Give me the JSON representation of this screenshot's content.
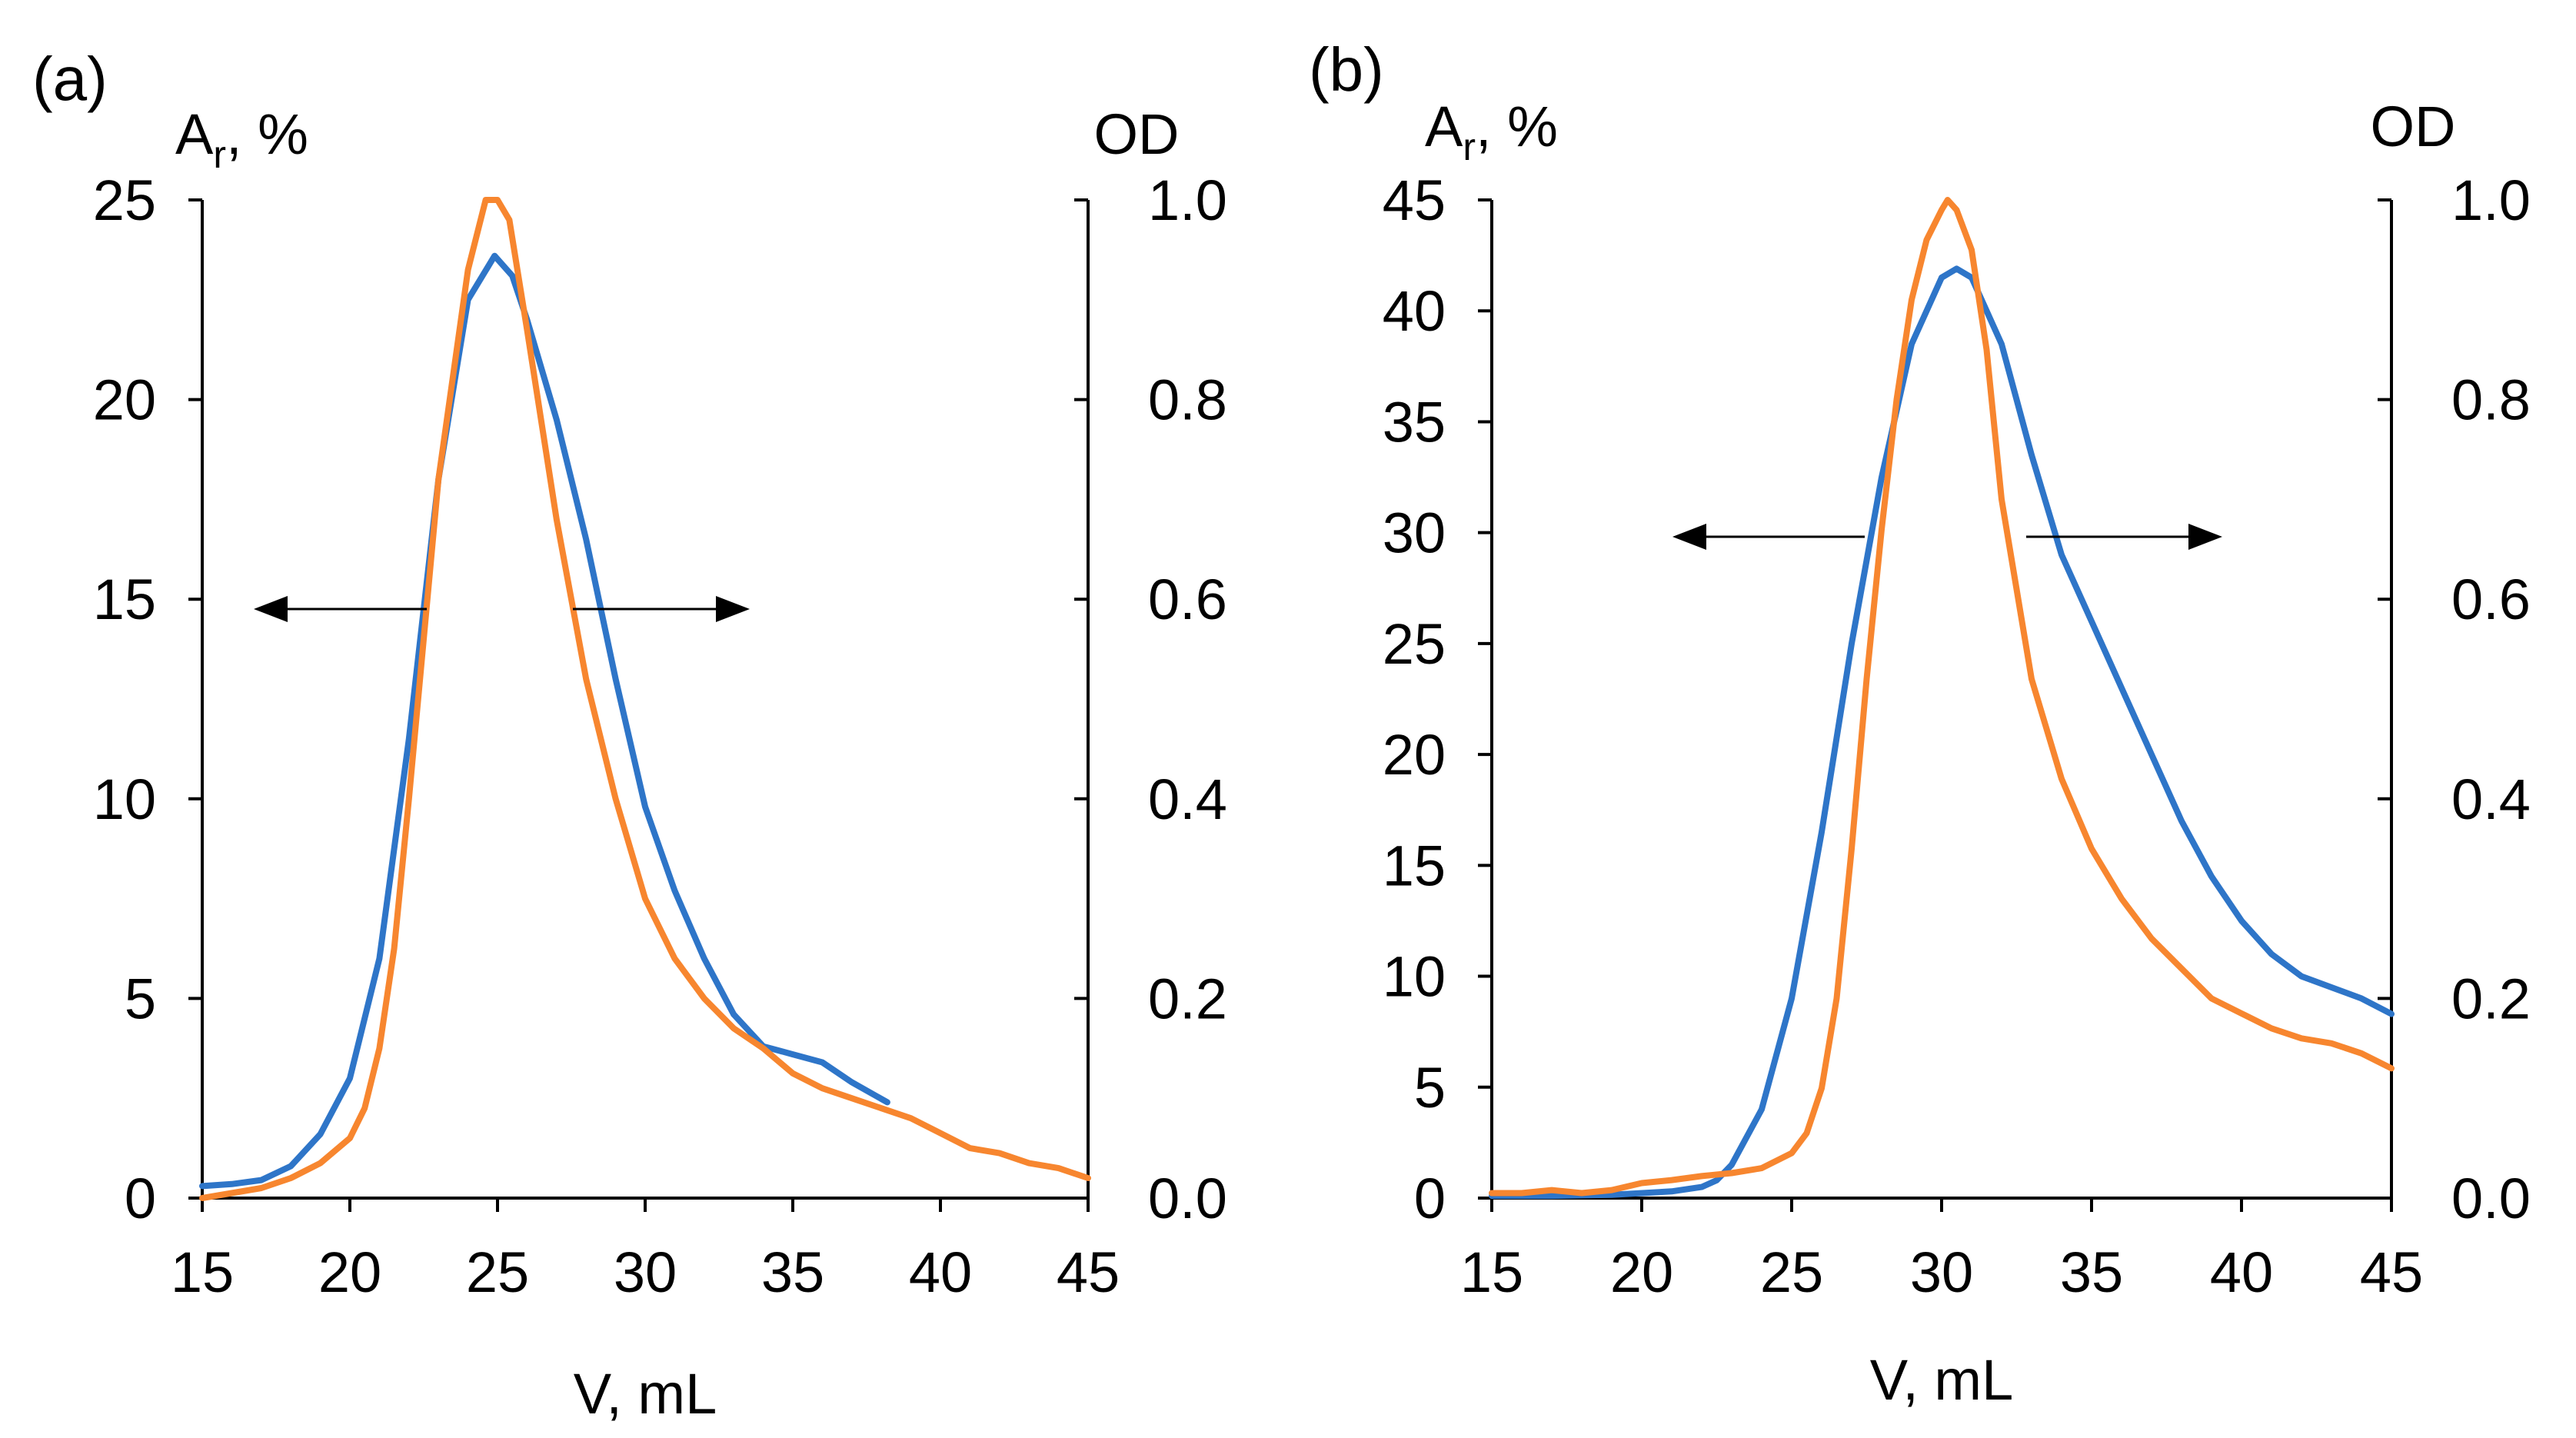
{
  "colors": {
    "blue": "#2e75c8",
    "orange": "#f7862f",
    "axis": "#000000"
  },
  "chart_data": [
    {
      "type": "line",
      "panel_label": "(a)",
      "xlabel": "V, mL",
      "ylabel_main": "A",
      "ylabel_sub": "r",
      "ylabel_tail": ", %",
      "y2label": "OD",
      "xlim": [
        15,
        45
      ],
      "ylim": [
        0,
        25
      ],
      "y2lim": [
        0,
        1.0
      ],
      "x_ticks": [
        "15",
        "20",
        "25",
        "30",
        "35",
        "40",
        "45"
      ],
      "y_ticks": [
        "0",
        "5",
        "10",
        "15",
        "20",
        "25"
      ],
      "y2_ticks": [
        "0.0",
        "0.2",
        "0.4",
        "0.6",
        "0.8",
        "1.0"
      ],
      "grid": false,
      "series": [
        {
          "axis": "left",
          "color": "#2e75c8",
          "x": [
            15,
            16,
            17,
            18,
            19,
            20,
            21,
            22,
            23,
            24,
            24.9,
            25.5,
            26,
            27,
            28,
            29,
            30,
            31,
            32,
            33,
            34,
            35,
            36,
            37,
            38.2
          ],
          "y": [
            0.3,
            0.35,
            0.45,
            0.8,
            1.6,
            3.0,
            6.0,
            11.5,
            18.0,
            22.5,
            23.6,
            23.1,
            22.0,
            19.5,
            16.5,
            13.0,
            9.8,
            7.7,
            6.0,
            4.6,
            3.8,
            3.6,
            3.4,
            2.9,
            2.4
          ]
        },
        {
          "axis": "right",
          "color": "#f7862f",
          "x": [
            15,
            16,
            17,
            18,
            19,
            20,
            20.5,
            21,
            21.5,
            22,
            23,
            24,
            24.6,
            25,
            25.4,
            26,
            27,
            28,
            29,
            30,
            31,
            32,
            33,
            34,
            35,
            36,
            37,
            38,
            39,
            40,
            41,
            42,
            43,
            44,
            45
          ],
          "y": [
            0.0,
            0.005,
            0.01,
            0.02,
            0.035,
            0.06,
            0.09,
            0.15,
            0.25,
            0.4,
            0.72,
            0.93,
            1.0,
            1.0,
            0.98,
            0.87,
            0.68,
            0.52,
            0.4,
            0.3,
            0.24,
            0.2,
            0.17,
            0.15,
            0.125,
            0.11,
            0.1,
            0.09,
            0.08,
            0.065,
            0.05,
            0.045,
            0.035,
            0.03,
            0.02
          ]
        }
      ]
    },
    {
      "type": "line",
      "panel_label": "(b)",
      "xlabel": "V, mL",
      "ylabel_main": "A",
      "ylabel_sub": "r",
      "ylabel_tail": ", %",
      "y2label": "OD",
      "xlim": [
        15,
        45
      ],
      "ylim": [
        0,
        45
      ],
      "y2lim": [
        0,
        1.0
      ],
      "x_ticks": [
        "15",
        "20",
        "25",
        "30",
        "35",
        "40",
        "45"
      ],
      "y_ticks": [
        "0",
        "5",
        "10",
        "15",
        "20",
        "25",
        "30",
        "35",
        "40",
        "45"
      ],
      "y2_ticks": [
        "0.0",
        "0.2",
        "0.4",
        "0.6",
        "0.8",
        "1.0"
      ],
      "grid": false,
      "series": [
        {
          "axis": "left",
          "color": "#2e75c8",
          "x": [
            15,
            17,
            19,
            21,
            22,
            22.5,
            23,
            24,
            25,
            26,
            27,
            28,
            29,
            30,
            30.5,
            31,
            32,
            33,
            34,
            35,
            36,
            37,
            38,
            39,
            40,
            41,
            42,
            43,
            44,
            45
          ],
          "y": [
            0.1,
            0.1,
            0.15,
            0.3,
            0.5,
            0.8,
            1.5,
            4.0,
            9.0,
            16.5,
            25.0,
            32.5,
            38.5,
            41.5,
            41.9,
            41.5,
            38.5,
            33.5,
            29.0,
            26.0,
            23.0,
            20.0,
            17.0,
            14.5,
            12.5,
            11.0,
            10.0,
            9.5,
            9.0,
            8.3
          ]
        },
        {
          "axis": "right",
          "color": "#f7862f",
          "x": [
            15,
            16,
            17,
            18,
            19,
            20,
            21,
            22,
            23,
            24,
            25,
            25.5,
            26,
            26.5,
            27,
            27.5,
            28,
            28.5,
            29,
            29.5,
            30,
            30.2,
            30.5,
            31,
            31.5,
            32,
            33,
            34,
            35,
            36,
            37,
            38,
            39,
            40,
            41,
            42,
            43,
            44,
            45
          ],
          "y": [
            0.005,
            0.005,
            0.008,
            0.005,
            0.008,
            0.015,
            0.018,
            0.022,
            0.025,
            0.03,
            0.045,
            0.065,
            0.11,
            0.2,
            0.35,
            0.52,
            0.67,
            0.8,
            0.9,
            0.96,
            0.99,
            1.0,
            0.99,
            0.95,
            0.85,
            0.7,
            0.52,
            0.42,
            0.35,
            0.3,
            0.26,
            0.23,
            0.2,
            0.185,
            0.17,
            0.16,
            0.155,
            0.145,
            0.13
          ]
        }
      ]
    }
  ]
}
